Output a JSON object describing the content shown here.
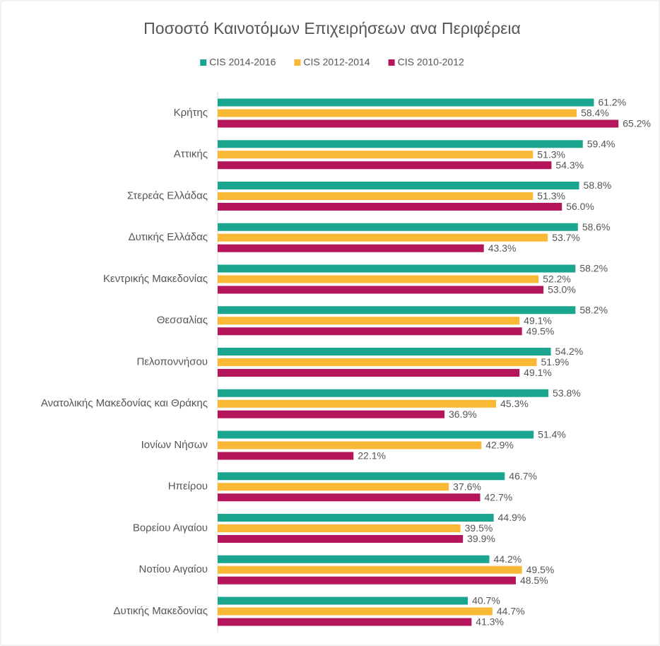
{
  "chart_data": {
    "type": "hbar",
    "title": "Ποσοστό Καινοτόμων Επιχειρήσεων ανα Περιφέρεια",
    "legend": "top",
    "categories": [
      "Κρήτης",
      "Αττικής",
      "Στερεάς Ελλάδας",
      "Δυτικής Ελλάδας",
      "Κεντρικής Μακεδονίας",
      "Θεσσαλίας",
      "Πελοποννήσου",
      "Ανατολικής Μακεδονίας και Θράκης",
      "Ιονίων Νήσων",
      "Ηπείρου",
      "Βορείου Αιγαίου",
      "Νοτίου Αιγαίου",
      "Δυτικής Μακεδονίας"
    ],
    "series": [
      {
        "name": "CIS 2014-2016",
        "color": "#1aa68e",
        "values": [
          61.2,
          59.4,
          58.8,
          58.6,
          58.2,
          58.2,
          54.2,
          53.8,
          51.4,
          46.7,
          44.9,
          44.2,
          40.7
        ],
        "value_labels": [
          "61.2%",
          "59.4%",
          "58.8%",
          "58.6%",
          "58.2%",
          "58.2%",
          "54.2%",
          "53.8%",
          "51.4%",
          "46.7%",
          "44.9%",
          "44.2%",
          "40.7%"
        ]
      },
      {
        "name": "CIS 2012-2014",
        "color": "#f9b836",
        "values": [
          58.4,
          51.3,
          51.3,
          53.7,
          52.2,
          49.1,
          51.9,
          45.3,
          42.9,
          37.6,
          39.5,
          49.5,
          44.7
        ],
        "value_labels": [
          "58.4%",
          "51.3%",
          "51.3%",
          "53.7%",
          "52.2%",
          "49.1%",
          "51.9%",
          "45.3%",
          "42.9%",
          "37.6%",
          "39.5%",
          "49.5%",
          "44.7%"
        ]
      },
      {
        "name": "CIS 2010-2012",
        "color": "#b5155a",
        "values": [
          65.2,
          54.3,
          56.0,
          43.3,
          53.0,
          49.5,
          49.1,
          36.9,
          22.1,
          42.7,
          39.9,
          48.5,
          41.3
        ],
        "value_labels": [
          "65.2%",
          "54.3%",
          "56.0%",
          "43.3%",
          "53.0%",
          "49.5%",
          "49.1%",
          "36.9%",
          "22.1%",
          "42.7%",
          "39.9%",
          "48.5%",
          "41.3%"
        ]
      }
    ]
  }
}
